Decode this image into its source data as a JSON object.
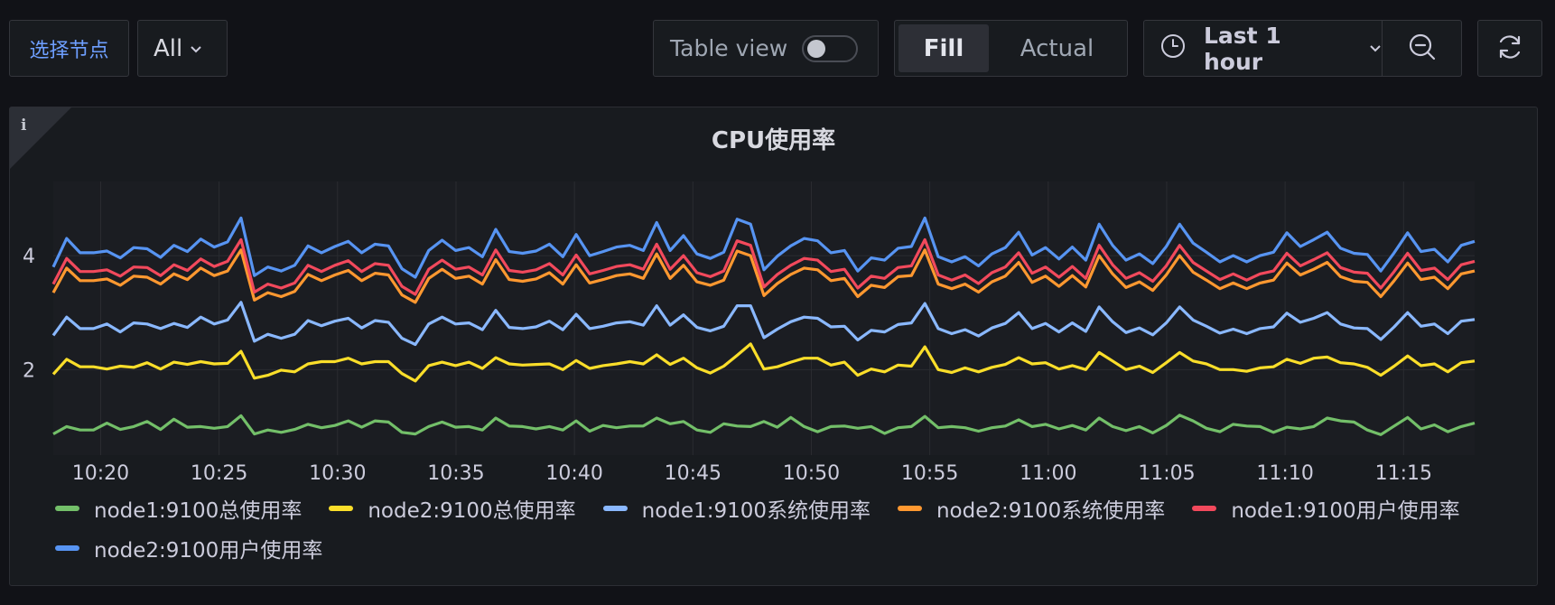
{
  "toolbar": {
    "node_label": "选择节点",
    "node_value": "All",
    "table_view_label": "Table view",
    "table_view_on": false,
    "fill_label": "Fill",
    "actual_label": "Actual",
    "time_range_label": "Last 1 hour"
  },
  "panel": {
    "info_icon": "i",
    "title": "CPU使用率"
  },
  "chart_data": {
    "type": "line",
    "title": "CPU使用率",
    "xlabel": "",
    "ylabel": "",
    "x_ticks": [
      "10:20",
      "10:25",
      "10:30",
      "10:35",
      "10:40",
      "10:45",
      "10:50",
      "10:55",
      "11:00",
      "11:05",
      "11:10",
      "11:15"
    ],
    "y_ticks": [
      2,
      4
    ],
    "ylim": [
      0.5,
      5.3
    ],
    "x_range": [
      "10:18",
      "11:18"
    ],
    "grid": true,
    "legend_position": "bottom",
    "series": [
      {
        "name": "node1:9100总使用率",
        "color": "#73bf69",
        "values": [
          0.87,
          1.0,
          0.94,
          0.94,
          1.06,
          0.95,
          1.0,
          1.09,
          0.95,
          1.13,
          0.99,
          1.0,
          0.97,
          1.0,
          1.19,
          0.87,
          0.94,
          0.9,
          0.95,
          1.04,
          0.98,
          1.02,
          1.1,
          0.99,
          1.1,
          1.08,
          0.9,
          0.87,
          1.0,
          1.08,
          0.99,
          1.0,
          0.94,
          1.15,
          1.01,
          1.0,
          0.96,
          1.0,
          0.94,
          1.1,
          0.92,
          1.02,
          0.98,
          1.01,
          1.01,
          1.15,
          1.05,
          1.09,
          0.94,
          0.9,
          1.05,
          1.01,
          1.0,
          1.09,
          0.99,
          1.16,
          1.0,
          0.91,
          1.0,
          1.01,
          0.97,
          1.0,
          0.88,
          0.98,
          1.0,
          1.18,
          0.98,
          1.0,
          0.98,
          0.92,
          0.98,
          1.01,
          1.12,
          1.0,
          1.04,
          0.96,
          1.02,
          0.94,
          1.15,
          1.0,
          0.93,
          1.0,
          0.89,
          1.02,
          1.2,
          1.1,
          0.97,
          0.91,
          1.04,
          1.01,
          1.0,
          0.9,
          0.99,
          0.96,
          1.0,
          1.15,
          1.1,
          1.08,
          0.94,
          0.86,
          1.01,
          1.16,
          0.96,
          1.03,
          0.91,
          1.0,
          1.06
        ]
      },
      {
        "name": "node2:9100总使用率",
        "color": "#fade2a",
        "values": [
          1.92,
          2.18,
          2.05,
          2.05,
          2.01,
          2.06,
          2.04,
          2.12,
          2.01,
          2.13,
          2.09,
          2.14,
          2.1,
          2.11,
          2.32,
          1.85,
          1.9,
          1.99,
          1.96,
          2.1,
          2.14,
          2.14,
          2.2,
          2.1,
          2.14,
          2.14,
          1.93,
          1.8,
          2.07,
          2.13,
          2.07,
          2.13,
          2.02,
          2.21,
          2.1,
          2.08,
          2.09,
          2.1,
          2.0,
          2.16,
          2.02,
          2.07,
          2.1,
          2.14,
          2.1,
          2.26,
          2.09,
          2.2,
          2.03,
          1.94,
          2.06,
          2.25,
          2.45,
          2.01,
          2.05,
          2.13,
          2.2,
          2.2,
          2.08,
          2.13,
          1.9,
          2.01,
          1.96,
          2.08,
          2.06,
          2.4,
          2.0,
          1.95,
          2.03,
          1.96,
          2.04,
          2.09,
          2.21,
          2.1,
          2.12,
          2.01,
          2.07,
          2.0,
          2.3,
          2.15,
          2.0,
          2.06,
          1.95,
          2.12,
          2.3,
          2.15,
          2.1,
          2.0,
          2.0,
          1.97,
          2.03,
          2.05,
          2.18,
          2.11,
          2.2,
          2.22,
          2.12,
          2.1,
          2.04,
          1.9,
          2.06,
          2.24,
          2.07,
          2.1,
          1.96,
          2.12,
          2.15
        ]
      },
      {
        "name": "node1:9100系统使用率",
        "color": "#8ab8ff",
        "values": [
          2.6,
          2.92,
          2.72,
          2.72,
          2.8,
          2.66,
          2.82,
          2.8,
          2.72,
          2.81,
          2.74,
          2.92,
          2.8,
          2.87,
          3.18,
          2.5,
          2.62,
          2.55,
          2.62,
          2.86,
          2.77,
          2.85,
          2.9,
          2.73,
          2.86,
          2.83,
          2.55,
          2.44,
          2.8,
          2.92,
          2.8,
          2.82,
          2.7,
          3.04,
          2.74,
          2.72,
          2.75,
          2.85,
          2.7,
          2.97,
          2.72,
          2.76,
          2.82,
          2.84,
          2.78,
          3.12,
          2.78,
          2.96,
          2.74,
          2.68,
          2.76,
          3.12,
          3.12,
          2.56,
          2.71,
          2.84,
          2.92,
          2.9,
          2.75,
          2.76,
          2.52,
          2.69,
          2.66,
          2.79,
          2.82,
          3.16,
          2.72,
          2.63,
          2.7,
          2.59,
          2.73,
          2.81,
          3.0,
          2.72,
          2.81,
          2.66,
          2.82,
          2.67,
          3.1,
          2.84,
          2.65,
          2.73,
          2.61,
          2.82,
          3.1,
          2.87,
          2.76,
          2.64,
          2.71,
          2.63,
          2.72,
          2.75,
          2.99,
          2.83,
          2.9,
          3.0,
          2.8,
          2.73,
          2.72,
          2.53,
          2.75,
          3.0,
          2.76,
          2.8,
          2.63,
          2.85,
          2.88
        ]
      },
      {
        "name": "node2:9100系统使用率",
        "color": "#ff9830",
        "values": [
          3.35,
          3.78,
          3.56,
          3.56,
          3.59,
          3.48,
          3.64,
          3.62,
          3.5,
          3.68,
          3.58,
          3.78,
          3.65,
          3.73,
          4.1,
          3.22,
          3.35,
          3.28,
          3.37,
          3.67,
          3.56,
          3.66,
          3.74,
          3.56,
          3.69,
          3.66,
          3.31,
          3.18,
          3.6,
          3.76,
          3.6,
          3.64,
          3.5,
          3.93,
          3.58,
          3.55,
          3.59,
          3.7,
          3.5,
          3.84,
          3.52,
          3.58,
          3.65,
          3.68,
          3.6,
          4.03,
          3.6,
          3.83,
          3.54,
          3.48,
          3.57,
          4.08,
          4.0,
          3.3,
          3.51,
          3.67,
          3.78,
          3.75,
          3.56,
          3.6,
          3.28,
          3.48,
          3.44,
          3.63,
          3.65,
          4.1,
          3.5,
          3.42,
          3.5,
          3.36,
          3.54,
          3.64,
          3.88,
          3.53,
          3.64,
          3.46,
          3.65,
          3.45,
          4.0,
          3.68,
          3.44,
          3.54,
          3.39,
          3.66,
          4.0,
          3.71,
          3.57,
          3.42,
          3.52,
          3.42,
          3.52,
          3.57,
          3.87,
          3.66,
          3.76,
          3.88,
          3.63,
          3.55,
          3.53,
          3.28,
          3.56,
          3.87,
          3.58,
          3.62,
          3.42,
          3.68,
          3.73
        ]
      },
      {
        "name": "node1:9100用户使用率",
        "color": "#f2495c",
        "values": [
          3.5,
          3.95,
          3.72,
          3.72,
          3.75,
          3.64,
          3.8,
          3.79,
          3.65,
          3.84,
          3.74,
          3.94,
          3.81,
          3.9,
          4.28,
          3.36,
          3.5,
          3.43,
          3.52,
          3.83,
          3.72,
          3.83,
          3.91,
          3.72,
          3.86,
          3.83,
          3.46,
          3.32,
          3.76,
          3.92,
          3.76,
          3.8,
          3.66,
          4.1,
          3.74,
          3.71,
          3.75,
          3.86,
          3.66,
          4.01,
          3.68,
          3.74,
          3.81,
          3.84,
          3.76,
          4.2,
          3.76,
          4.0,
          3.7,
          3.63,
          3.73,
          4.26,
          4.18,
          3.45,
          3.67,
          3.83,
          3.95,
          3.92,
          3.72,
          3.76,
          3.43,
          3.64,
          3.6,
          3.79,
          3.82,
          4.28,
          3.66,
          3.57,
          3.66,
          3.51,
          3.7,
          3.8,
          4.05,
          3.69,
          3.8,
          3.62,
          3.81,
          3.6,
          4.18,
          3.84,
          3.6,
          3.7,
          3.55,
          3.82,
          4.18,
          3.88,
          3.73,
          3.58,
          3.68,
          3.57,
          3.68,
          3.73,
          4.04,
          3.82,
          3.93,
          4.05,
          3.79,
          3.71,
          3.69,
          3.43,
          3.72,
          4.04,
          3.74,
          3.78,
          3.58,
          3.84,
          3.9
        ]
      },
      {
        "name": "node2:9100用户使用率",
        "color": "#5794f2",
        "values": [
          3.8,
          4.3,
          4.05,
          4.05,
          4.08,
          3.96,
          4.14,
          4.12,
          3.97,
          4.18,
          4.07,
          4.29,
          4.15,
          4.24,
          4.66,
          3.65,
          3.8,
          3.73,
          3.83,
          4.17,
          4.05,
          4.16,
          4.25,
          4.05,
          4.2,
          4.17,
          3.77,
          3.62,
          4.09,
          4.27,
          4.09,
          4.14,
          3.98,
          4.46,
          4.07,
          4.04,
          4.08,
          4.2,
          3.98,
          4.37,
          4.0,
          4.07,
          4.15,
          4.18,
          4.09,
          4.58,
          4.09,
          4.35,
          4.03,
          3.95,
          4.06,
          4.64,
          4.55,
          3.75,
          3.99,
          4.17,
          4.3,
          4.26,
          4.05,
          4.09,
          3.73,
          3.96,
          3.92,
          4.13,
          4.16,
          4.66,
          3.98,
          3.89,
          3.98,
          3.82,
          4.03,
          4.14,
          4.41,
          4.01,
          4.14,
          3.94,
          4.15,
          3.92,
          4.55,
          4.18,
          3.92,
          4.03,
          3.86,
          4.16,
          4.55,
          4.22,
          4.06,
          3.89,
          4.0,
          3.89,
          4.0,
          4.06,
          4.4,
          4.16,
          4.28,
          4.41,
          4.13,
          4.04,
          4.02,
          3.73,
          4.05,
          4.4,
          4.07,
          4.11,
          3.89,
          4.18,
          4.25
        ]
      }
    ]
  },
  "icons": {
    "chevron": "chevron-down-icon",
    "clock": "clock-icon",
    "zoom_out": "zoom-out-icon",
    "refresh": "refresh-icon"
  }
}
